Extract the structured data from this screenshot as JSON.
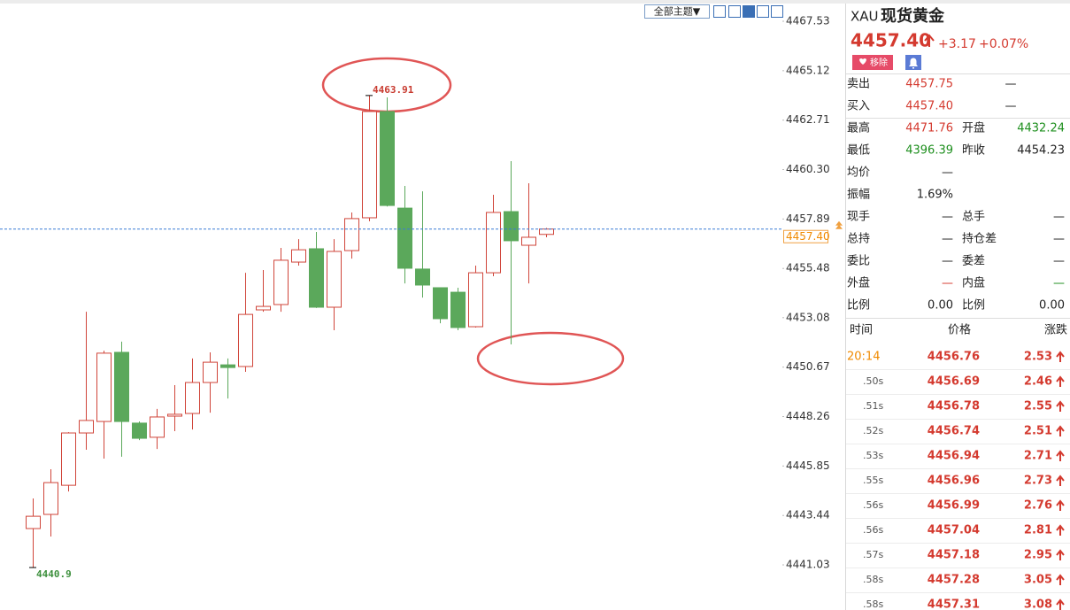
{
  "chart_data": {
    "type": "candlestick",
    "open": [
      4442.8,
      4443.49,
      4444.91,
      4447.46,
      4448.02,
      4451.39,
      4447.94,
      4447.25,
      4448.28,
      4448.41,
      4449.92,
      4450.78,
      4450.7,
      4453.46,
      4453.72,
      4455.79,
      4456.44,
      4453.59,
      4456.35,
      4457.95,
      4463.13,
      4458.42,
      4455.45,
      4454.54,
      4454.32,
      4452.64,
      4455.27,
      4458.25,
      4456.61,
      4457.14
    ],
    "high": [
      4444.27,
      4445.69,
      4447.5,
      4453.37,
      4451.47,
      4451.91,
      4448.02,
      4448.63,
      4449.79,
      4451.09,
      4451.39,
      4451.09,
      4455.27,
      4455.4,
      4456.48,
      4456.91,
      4457.26,
      4456.91,
      4458.21,
      4463.91,
      4463.82,
      4459.5,
      4459.24,
      4454.54,
      4454.54,
      4455.62,
      4459.07,
      4460.71,
      4459.63,
      4457.45
    ],
    "low": [
      4440.9,
      4442.41,
      4444.61,
      4446.64,
      4446.21,
      4446.3,
      4447.11,
      4446.68,
      4447.55,
      4447.63,
      4448.45,
      4449.14,
      4450.44,
      4453.37,
      4453.37,
      4455.62,
      4453.55,
      4452.47,
      4455.96,
      4457.78,
      4458.5,
      4454.75,
      4454.06,
      4452.81,
      4452.47,
      4452.6,
      4455.1,
      4451.78,
      4454.75,
      4457
    ],
    "close": [
      4443.4,
      4445.04,
      4447.46,
      4448.07,
      4451.35,
      4448.02,
      4447.2,
      4448.24,
      4448.37,
      4449.92,
      4450.91,
      4450.65,
      4453.24,
      4453.63,
      4455.88,
      4456.39,
      4453.59,
      4456.31,
      4457.91,
      4463.13,
      4458.55,
      4455.49,
      4454.67,
      4453.03,
      4452.6,
      4455.27,
      4458.21,
      4456.83,
      4457,
      4457.4
    ],
    "up_color": "#d0453a",
    "down_color": "#5ba85b",
    "ylim": [
      4438.83,
      4468.35
    ],
    "yticks": [
      4467.53,
      4465.12,
      4462.71,
      {
        "value": 4460.3,
        "label": "4460.30"
      },
      4457.89,
      4455.48,
      4453.08,
      4450.67,
      4448.26,
      4445.85,
      4443.44,
      4441.03
    ],
    "current": {
      "value": 4457.4,
      "label": "4457.40"
    }
  },
  "toolbar": {
    "theme_button": "全部主题▼"
  },
  "quote": {
    "symbol": "XAU",
    "name": "现货黄金",
    "price": "4457.40",
    "change": "+3.17",
    "change_pct": "+0.07%",
    "remove_button": "移除"
  },
  "stats": [
    [
      "卖出",
      "4457.75",
      "—"
    ],
    [
      "买入",
      "4457.40",
      "—"
    ],
    [
      "最高",
      "4471.76",
      "开盘",
      "4432.24"
    ],
    [
      "最低",
      "4396.39",
      "昨收",
      "4454.23"
    ],
    [
      "均价",
      "—"
    ],
    [
      "振幅",
      "1.69%"
    ],
    [
      "现手",
      "—",
      "总手",
      "—"
    ],
    [
      "总持",
      "—",
      "持仓差",
      "—"
    ],
    [
      "委比",
      "—",
      "委差",
      "—"
    ],
    [
      "外盘",
      "—",
      "内盘",
      "—"
    ],
    [
      "比例",
      "0.00",
      "比例",
      "0.00"
    ]
  ],
  "trades": {
    "header": [
      "时间",
      "价格",
      "涨跌"
    ],
    "rows": [
      [
        "20:14",
        "4456.76",
        "2.53"
      ],
      [
        ".50s",
        "4456.69",
        "2.46"
      ],
      [
        ".51s",
        "4456.78",
        "2.55"
      ],
      [
        ".52s",
        "4456.74",
        "2.51"
      ],
      [
        ".53s",
        "4456.94",
        "2.71"
      ],
      [
        ".55s",
        "4456.96",
        "2.73"
      ],
      [
        ".56s",
        "4456.99",
        "2.76"
      ],
      [
        ".56s",
        "4457.04",
        "2.81"
      ],
      [
        ".57s",
        "4457.18",
        "2.95"
      ],
      [
        ".58s",
        "4457.28",
        "3.05"
      ],
      [
        ".58s",
        "4457.31",
        "3.08"
      ]
    ]
  }
}
